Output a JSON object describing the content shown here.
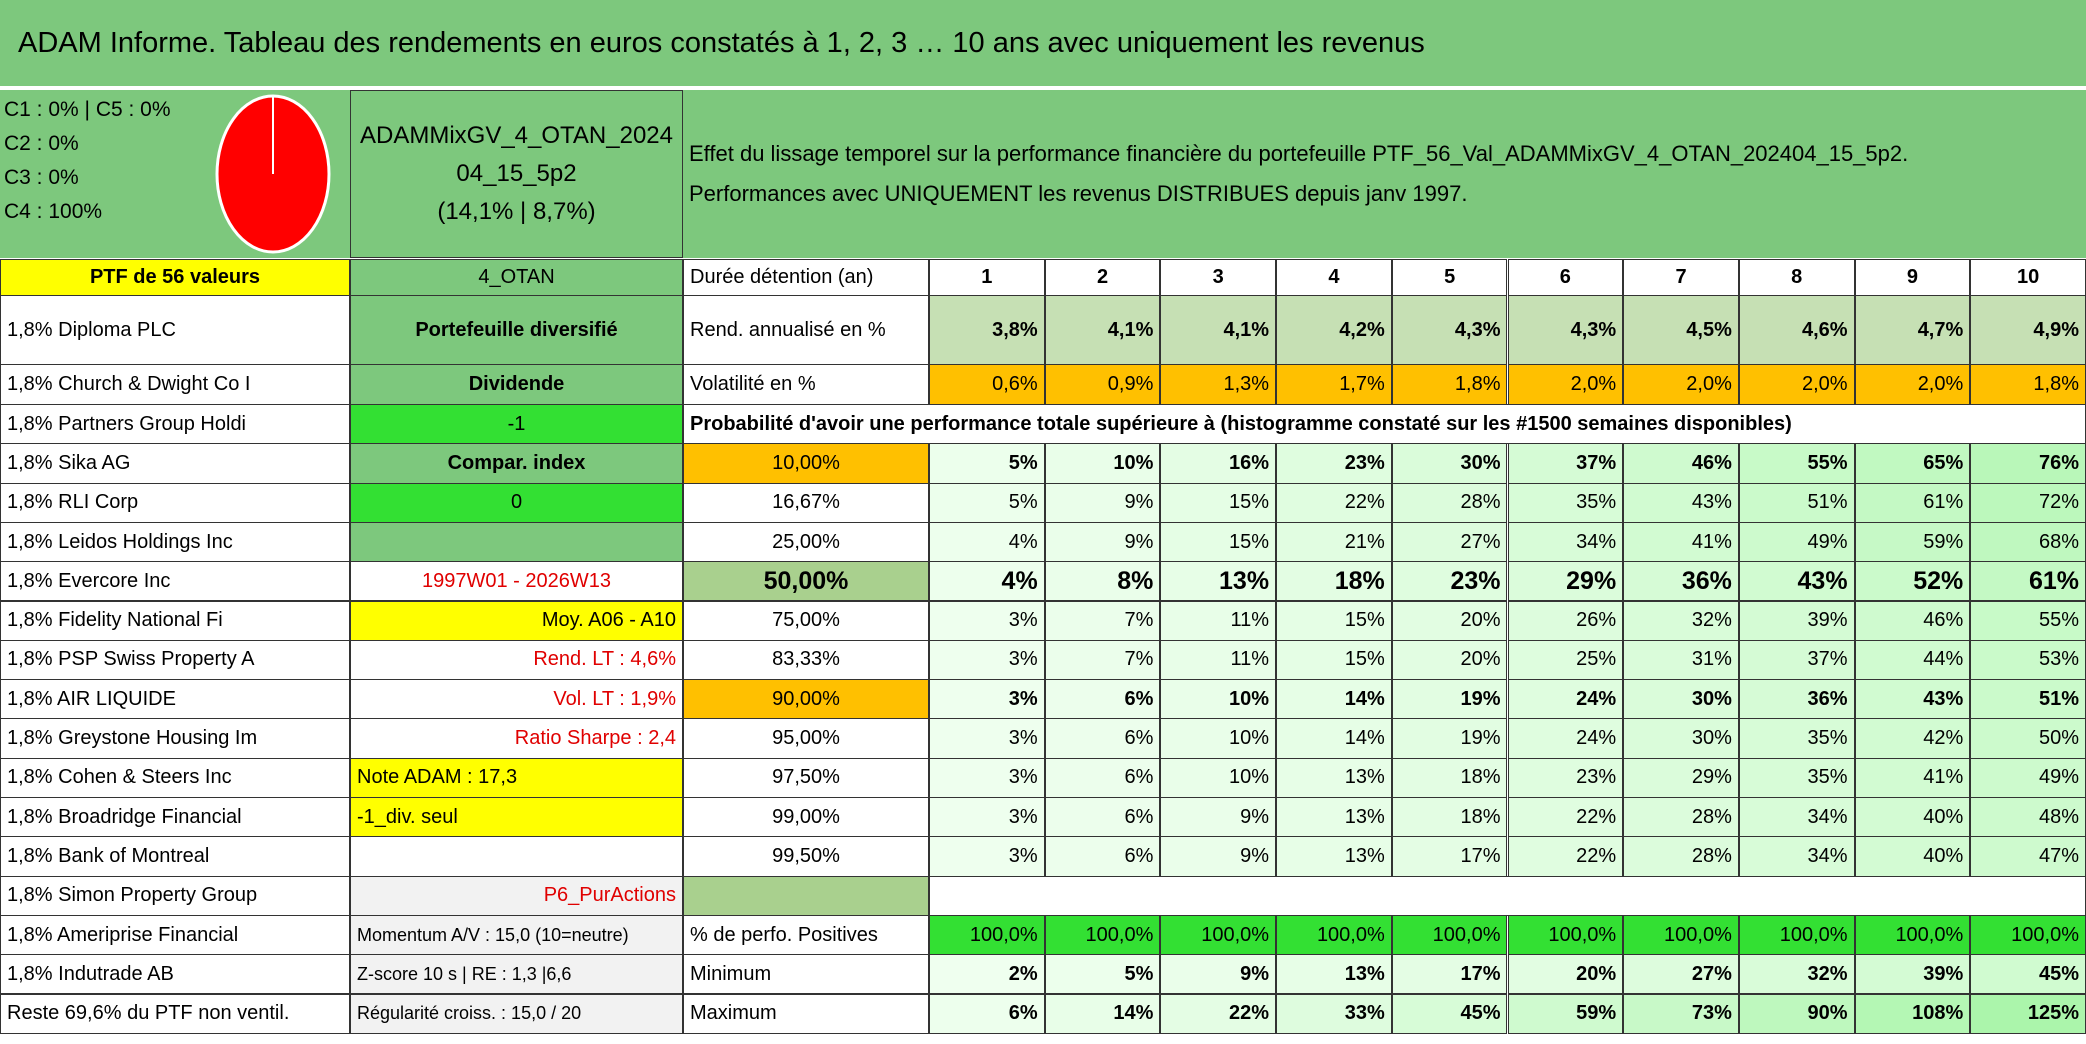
{
  "header": {
    "title": "ADAM Informe. Tableau des rendements en euros constatés à 1, 2, 3 … 10 ans avec uniquement les revenus"
  },
  "summary": {
    "allocation": [
      "C1 : 0% | C5 : 0%",
      "C2 : 0%",
      "C3 : 0%",
      "C4 : 100%"
    ],
    "portfolio_lines": [
      "ADAMMixGV_4_OTAN_2024",
      "04_15_5p2",
      "(14,1% | 8,7%)"
    ],
    "description_lines": [
      "Effet du lissage temporel sur la performance financière du portefeuille PTF_56_Val_ADAMMixGV_4_OTAN_202404_15_5p2.",
      "Performances avec UNIQUEMENT les revenus DISTRIBUES depuis janv 1997."
    ]
  },
  "holdings": {
    "header": "PTF de 56 valeurs",
    "rows": [
      "1,8% Diploma PLC",
      "1,8% Church & Dwight Co I",
      "1,8% Partners Group Holdi",
      "1,8% Sika AG",
      "1,8% RLI Corp",
      "1,8% Leidos Holdings Inc",
      "1,8% Evercore Inc",
      "1,8% Fidelity National Fi",
      "1,8% PSP Swiss Property A",
      "1,8% AIR LIQUIDE",
      "1,8% Greystone Housing Im",
      "1,8% Cohen & Steers Inc",
      "1,8% Broadridge Financial",
      "1,8% Bank of Montreal",
      "1,8% Simon Property Group",
      "1,8% Ameriprise Financial",
      "1,8% Indutrade AB"
    ],
    "footer": "Reste 69,6% du PTF non ventil."
  },
  "info_panel": [
    "4_OTAN",
    "Portefeuille diversifié",
    "Dividende",
    "-1",
    "Compar. index",
    "0",
    null,
    "1997W01 - 2026W13",
    "Moy. A06 - A10",
    "Rend. LT : 4,6%",
    "Vol. LT : 1,9%",
    "Ratio Sharpe : 2,4",
    "Note ADAM : 17,3",
    "-1_div. seul",
    null,
    "P6_PurActions",
    "Momentum A/V : 15,0 (10=neutre)",
    "Z-score 10 s | RE : 1,3 |6,6",
    "Régularité croiss. : 15,0 / 20"
  ],
  "table": {
    "durations": {
      "label": "Durée détention (an)",
      "years": [
        "1",
        "2",
        "3",
        "4",
        "5",
        "6",
        "7",
        "8",
        "9",
        "10"
      ]
    },
    "returns": {
      "label": "Rend. annualisé en %",
      "values": [
        "3,8%",
        "4,1%",
        "4,1%",
        "4,2%",
        "4,3%",
        "4,3%",
        "4,5%",
        "4,6%",
        "4,7%",
        "4,9%"
      ]
    },
    "volatility": {
      "label": "Volatilité en %",
      "values": [
        "0,6%",
        "0,9%",
        "1,3%",
        "1,7%",
        "1,8%",
        "2,0%",
        "2,0%",
        "2,0%",
        "2,0%",
        "1,8%"
      ]
    },
    "probability": {
      "title": "Probabilité d'avoir une performance totale supérieure à (histogramme constaté sur les #1500 semaines disponibles)",
      "rows": [
        {
          "threshold": "10,00%",
          "values": [
            "5%",
            "10%",
            "16%",
            "23%",
            "30%",
            "37%",
            "46%",
            "55%",
            "65%",
            "76%"
          ]
        },
        {
          "threshold": "16,67%",
          "values": [
            "5%",
            "9%",
            "15%",
            "22%",
            "28%",
            "35%",
            "43%",
            "51%",
            "61%",
            "72%"
          ]
        },
        {
          "threshold": "25,00%",
          "values": [
            "4%",
            "9%",
            "15%",
            "21%",
            "27%",
            "34%",
            "41%",
            "49%",
            "59%",
            "68%"
          ]
        },
        {
          "threshold": "50,00%",
          "values": [
            "4%",
            "8%",
            "13%",
            "18%",
            "23%",
            "29%",
            "36%",
            "43%",
            "52%",
            "61%"
          ]
        },
        {
          "threshold": "75,00%",
          "values": [
            "3%",
            "7%",
            "11%",
            "15%",
            "20%",
            "26%",
            "32%",
            "39%",
            "46%",
            "55%"
          ]
        },
        {
          "threshold": "83,33%",
          "values": [
            "3%",
            "7%",
            "11%",
            "15%",
            "20%",
            "25%",
            "31%",
            "37%",
            "44%",
            "53%"
          ]
        },
        {
          "threshold": "90,00%",
          "values": [
            "3%",
            "6%",
            "10%",
            "14%",
            "19%",
            "24%",
            "30%",
            "36%",
            "43%",
            "51%"
          ]
        },
        {
          "threshold": "95,00%",
          "values": [
            "3%",
            "6%",
            "10%",
            "14%",
            "19%",
            "24%",
            "30%",
            "35%",
            "42%",
            "50%"
          ]
        },
        {
          "threshold": "97,50%",
          "values": [
            "3%",
            "6%",
            "10%",
            "13%",
            "18%",
            "23%",
            "29%",
            "35%",
            "41%",
            "49%"
          ]
        },
        {
          "threshold": "99,00%",
          "values": [
            "3%",
            "6%",
            "9%",
            "13%",
            "18%",
            "22%",
            "28%",
            "34%",
            "40%",
            "48%"
          ]
        },
        {
          "threshold": "99,50%",
          "values": [
            "3%",
            "6%",
            "9%",
            "13%",
            "17%",
            "22%",
            "28%",
            "34%",
            "40%",
            "47%"
          ]
        }
      ]
    },
    "positives": {
      "label": "% de perfo. Positives",
      "values": [
        "100,0%",
        "100,0%",
        "100,0%",
        "100,0%",
        "100,0%",
        "100,0%",
        "100,0%",
        "100,0%",
        "100,0%",
        "100,0%"
      ]
    },
    "minimum": {
      "label": "Minimum",
      "values": [
        "2%",
        "5%",
        "9%",
        "13%",
        "17%",
        "20%",
        "27%",
        "32%",
        "39%",
        "45%"
      ]
    },
    "maximum": {
      "label": "Maximum",
      "values": [
        "6%",
        "14%",
        "22%",
        "33%",
        "45%",
        "59%",
        "73%",
        "90%",
        "108%",
        "125%"
      ]
    }
  }
}
